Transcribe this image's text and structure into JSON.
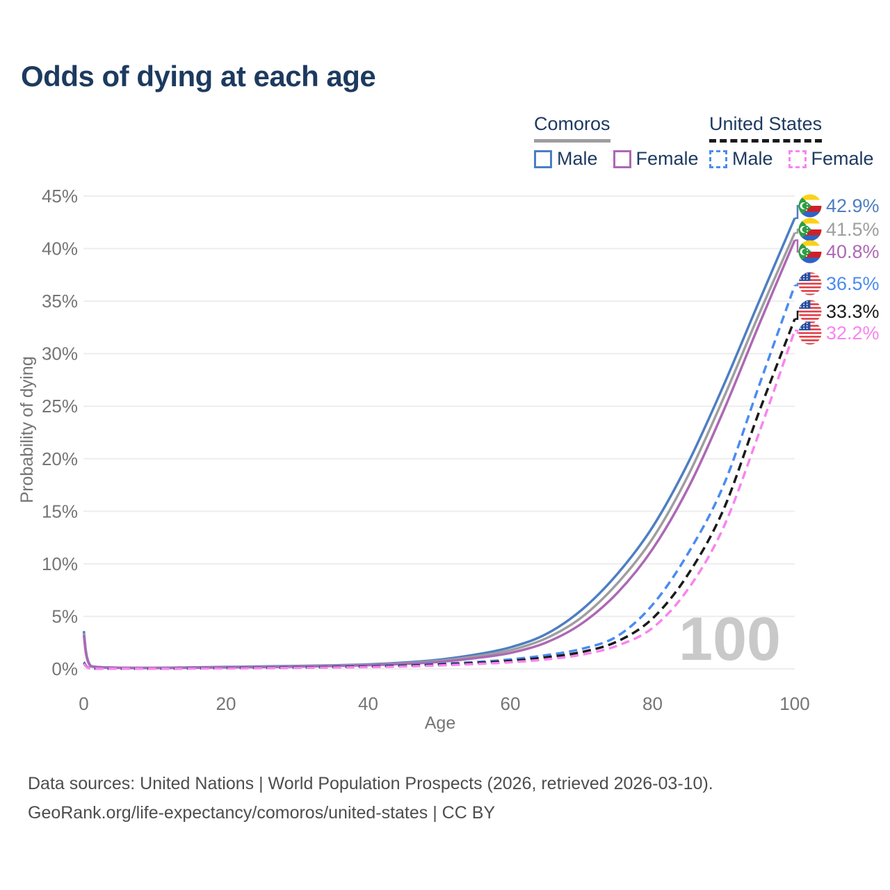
{
  "title": "Odds of dying at each age",
  "legend": {
    "groups": [
      {
        "country": "Comoros",
        "line_style": "solid",
        "underline_color": "#9e9e9e",
        "items": [
          {
            "label": "Male",
            "color": "#4d7ec2",
            "dashed": false
          },
          {
            "label": "Female",
            "color": "#ad68b4",
            "dashed": false
          }
        ]
      },
      {
        "country": "United States",
        "line_style": "dashed",
        "underline_color": "#1a1a1a",
        "items": [
          {
            "label": "Male",
            "color": "#4b8bf0",
            "dashed": true
          },
          {
            "label": "Female",
            "color": "#f884ef",
            "dashed": true
          }
        ]
      }
    ]
  },
  "watermark": "100",
  "footer": {
    "line1": "Data sources: United Nations | World Population Prospects (2026, retrieved 2026-03-10).",
    "line2": "GeoRank.org/life-expectancy/comoros/united-states | CC BY"
  },
  "chart_data": {
    "type": "line",
    "title": "Odds of dying at each age",
    "xlabel": "Age",
    "ylabel": "Probability of dying",
    "xlim": [
      0,
      100
    ],
    "ylim": [
      0,
      45
    ],
    "xticks": [
      0,
      20,
      40,
      60,
      80,
      100
    ],
    "yticks": [
      0,
      5,
      10,
      15,
      20,
      25,
      30,
      35,
      40,
      45
    ],
    "ytick_suffix": "%",
    "grid": true,
    "legend_position": "top-right",
    "x": [
      0,
      1,
      5,
      10,
      15,
      20,
      25,
      30,
      35,
      40,
      45,
      50,
      55,
      60,
      65,
      70,
      75,
      80,
      85,
      90,
      95,
      100
    ],
    "series": [
      {
        "name": "Comoros Male",
        "slug": "comoros-male",
        "flag": "comoros",
        "color": "#4d7ec2",
        "dashed": false,
        "end_label": "42.9%",
        "values": [
          3.6,
          0.28,
          0.12,
          0.1,
          0.14,
          0.19,
          0.23,
          0.28,
          0.34,
          0.43,
          0.6,
          0.88,
          1.35,
          2.05,
          3.3,
          5.6,
          9.0,
          13.5,
          19.6,
          27.0,
          35.0,
          42.9
        ]
      },
      {
        "name": "Comoros Both sexes",
        "slug": "comoros-both",
        "flag": "comoros",
        "color": "#9e9e9e",
        "dashed": false,
        "end_label": "41.5%",
        "values": [
          3.4,
          0.26,
          0.11,
          0.09,
          0.12,
          0.16,
          0.2,
          0.25,
          0.31,
          0.39,
          0.53,
          0.77,
          1.18,
          1.78,
          2.9,
          4.9,
          8.1,
          12.4,
          18.4,
          25.8,
          33.8,
          41.5
        ]
      },
      {
        "name": "Comoros Female",
        "slug": "comoros-female",
        "flag": "comoros",
        "color": "#ad68b4",
        "dashed": false,
        "end_label": "40.8%",
        "values": [
          3.2,
          0.24,
          0.1,
          0.08,
          0.11,
          0.14,
          0.17,
          0.21,
          0.27,
          0.35,
          0.47,
          0.67,
          1.02,
          1.52,
          2.5,
          4.3,
          7.2,
          11.4,
          17.2,
          24.6,
          32.8,
          40.8
        ]
      },
      {
        "name": "United States Male",
        "slug": "us-male",
        "flag": "united-states",
        "color": "#4b8bf0",
        "dashed": true,
        "end_label": "36.5%",
        "values": [
          0.64,
          0.04,
          0.02,
          0.02,
          0.06,
          0.1,
          0.13,
          0.16,
          0.21,
          0.26,
          0.35,
          0.48,
          0.65,
          0.9,
          1.3,
          1.9,
          3.1,
          6.1,
          11.0,
          17.5,
          27.0,
          36.5
        ]
      },
      {
        "name": "United States Both sexes",
        "slug": "us-both",
        "flag": "united-states",
        "color": "#1a1a1a",
        "dashed": true,
        "end_label": "33.3%",
        "values": [
          0.56,
          0.035,
          0.017,
          0.015,
          0.045,
          0.08,
          0.1,
          0.13,
          0.17,
          0.22,
          0.3,
          0.41,
          0.56,
          0.76,
          1.1,
          1.6,
          2.6,
          4.8,
          9.0,
          15.2,
          24.5,
          33.3
        ]
      },
      {
        "name": "United States Female",
        "slug": "us-female",
        "flag": "united-states",
        "color": "#f884ef",
        "dashed": true,
        "end_label": "32.2%",
        "values": [
          0.5,
          0.03,
          0.015,
          0.013,
          0.035,
          0.055,
          0.07,
          0.1,
          0.13,
          0.17,
          0.23,
          0.33,
          0.46,
          0.63,
          0.9,
          1.35,
          2.2,
          3.9,
          7.6,
          13.5,
          22.5,
          32.2
        ]
      }
    ]
  }
}
